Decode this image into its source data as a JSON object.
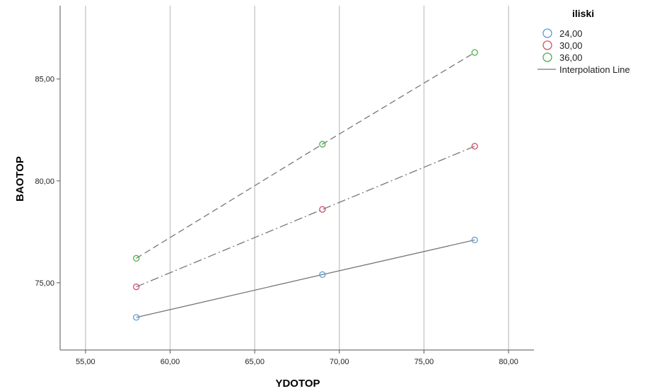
{
  "chart_data": {
    "type": "line",
    "xlabel": "YDOTOP",
    "ylabel": "BAOTOP",
    "xlim": [
      53.5,
      81.5
    ],
    "ylim": [
      71.7,
      88.6
    ],
    "x_ticks": [
      55,
      60,
      65,
      70,
      75,
      80
    ],
    "x_tick_labels": [
      "55,00",
      "60,00",
      "65,00",
      "70,00",
      "75,00",
      "80,00"
    ],
    "y_ticks": [
      75,
      80,
      85
    ],
    "y_tick_labels": [
      "75,00",
      "80,00",
      "85,00"
    ],
    "grid": "vertical",
    "legend": {
      "title": "iliski",
      "placement": "top-right",
      "interpolation_label": "Interpolation Line"
    },
    "series": [
      {
        "name": "24,00",
        "color": "#5b9bd5",
        "line_style": "solid",
        "x": [
          58,
          69,
          78
        ],
        "y": [
          73.3,
          75.4,
          77.1
        ]
      },
      {
        "name": "30,00",
        "color": "#d0506a",
        "line_style": "dash-dot",
        "x": [
          58,
          69,
          78
        ],
        "y": [
          74.8,
          78.6,
          81.7
        ]
      },
      {
        "name": "36,00",
        "color": "#4caf50",
        "line_style": "dashed",
        "x": [
          58,
          69,
          78
        ],
        "y": [
          76.2,
          81.8,
          86.3
        ]
      }
    ]
  }
}
